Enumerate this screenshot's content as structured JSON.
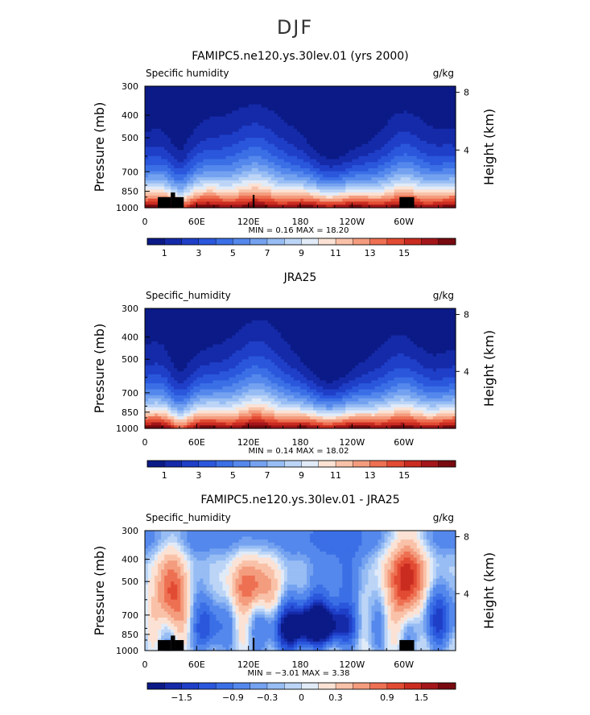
{
  "figure": {
    "title": "DJF"
  },
  "colormaps": {
    "humidity": [
      "#0b1a86",
      "#152aa8",
      "#1f3fc8",
      "#2a57dc",
      "#3b6fe6",
      "#5588ec",
      "#74a2f0",
      "#97bdf4",
      "#bcd5f7",
      "#e1ebf8",
      "#fbe2d4",
      "#f9c2a8",
      "#f49c7e",
      "#ee7052",
      "#e24b33",
      "#ca2c20",
      "#a4161a",
      "#780a10"
    ],
    "difference": [
      "#0b1a86",
      "#152aa8",
      "#1f3fc8",
      "#2a57dc",
      "#3b6fe6",
      "#5588ec",
      "#74a2f0",
      "#97bdf4",
      "#bcd5f7",
      "#e1ebf8",
      "#fbe2d4",
      "#f9c2a8",
      "#f49c7e",
      "#ee7052",
      "#e24b33",
      "#ca2c20",
      "#a4161a",
      "#780a10"
    ],
    "land": "#000000"
  },
  "chart_data": [
    {
      "type": "heatmap",
      "title": "FAMIPC5.ne120.ys.30lev.01 (yrs 2000)",
      "left_string": "Specific humidity",
      "units": "g/kg",
      "ylabel": "Pressure (mb)",
      "ylabel_right": "Height (km)",
      "x_ticks": [
        "0",
        "60E",
        "120E",
        "180",
        "120W",
        "60W"
      ],
      "x_tick_values": [
        0,
        60,
        120,
        180,
        240,
        300
      ],
      "xlim": [
        0,
        360
      ],
      "y_ticks": [
        "300",
        "400",
        "500",
        "700",
        "850",
        "1000"
      ],
      "y_tick_values": [
        300,
        400,
        500,
        700,
        850,
        1000
      ],
      "ylim": [
        300,
        1000
      ],
      "height_ticks": [
        "8",
        "4"
      ],
      "height_tick_values": [
        8,
        4
      ],
      "stats": "MIN =    0.16   MAX =   18.20",
      "colorbar_labels": [
        "1",
        "3",
        "5",
        "7",
        "9",
        "11",
        "13",
        "15"
      ],
      "colorbar_levels": [
        1,
        2,
        3,
        4,
        5,
        6,
        7,
        8,
        9,
        10,
        11,
        12,
        13,
        14,
        15,
        16,
        17
      ],
      "cmap": "humidity",
      "mode": "humidity",
      "model_topography": true
    },
    {
      "type": "heatmap",
      "title": "JRA25",
      "left_string": "Specific_humidity",
      "units": "g/kg",
      "ylabel": "Pressure (mb)",
      "ylabel_right": "Height (km)",
      "x_ticks": [
        "0",
        "60E",
        "120E",
        "180",
        "120W",
        "60W"
      ],
      "x_tick_values": [
        0,
        60,
        120,
        180,
        240,
        300
      ],
      "xlim": [
        0,
        360
      ],
      "y_ticks": [
        "300",
        "400",
        "500",
        "700",
        "850",
        "1000"
      ],
      "y_tick_values": [
        300,
        400,
        500,
        700,
        850,
        1000
      ],
      "ylim": [
        300,
        1000
      ],
      "height_ticks": [
        "8",
        "4"
      ],
      "height_tick_values": [
        8,
        4
      ],
      "stats": "MIN =    0.14   MAX =   18.02",
      "colorbar_labels": [
        "1",
        "3",
        "5",
        "7",
        "9",
        "11",
        "13",
        "15"
      ],
      "colorbar_levels": [
        1,
        2,
        3,
        4,
        5,
        6,
        7,
        8,
        9,
        10,
        11,
        12,
        13,
        14,
        15,
        16,
        17
      ],
      "cmap": "humidity",
      "mode": "humidity",
      "model_topography": false
    },
    {
      "type": "heatmap",
      "title": "FAMIPC5.ne120.ys.30lev.01 - JRA25",
      "left_string": "Specific_humidity",
      "units": "g/kg",
      "ylabel": "Pressure (mb)",
      "ylabel_right": "Height (km)",
      "x_ticks": [
        "0",
        "60E",
        "120E",
        "180",
        "120W",
        "60W"
      ],
      "x_tick_values": [
        0,
        60,
        120,
        180,
        240,
        300
      ],
      "xlim": [
        0,
        360
      ],
      "y_ticks": [
        "300",
        "400",
        "500",
        "700",
        "850",
        "1000"
      ],
      "y_tick_values": [
        300,
        400,
        500,
        700,
        850,
        1000
      ],
      "ylim": [
        300,
        1000
      ],
      "height_ticks": [
        "8",
        "4"
      ],
      "height_tick_values": [
        8,
        4
      ],
      "stats": "MIN =   −3.01   MAX =    3.38",
      "colorbar_labels": [
        "−1.5",
        "−0.9",
        "−0.3",
        "0",
        "0.3",
        "0.9",
        "1.5"
      ],
      "colorbar_levels": [
        -1.8,
        -1.5,
        -1.2,
        -0.9,
        -0.6,
        -0.3,
        -0.15,
        0,
        0.15,
        0.3,
        0.6,
        0.9,
        1.2,
        1.5,
        1.8
      ],
      "cmap": "difference",
      "mode": "difference",
      "model_topography": true
    }
  ]
}
